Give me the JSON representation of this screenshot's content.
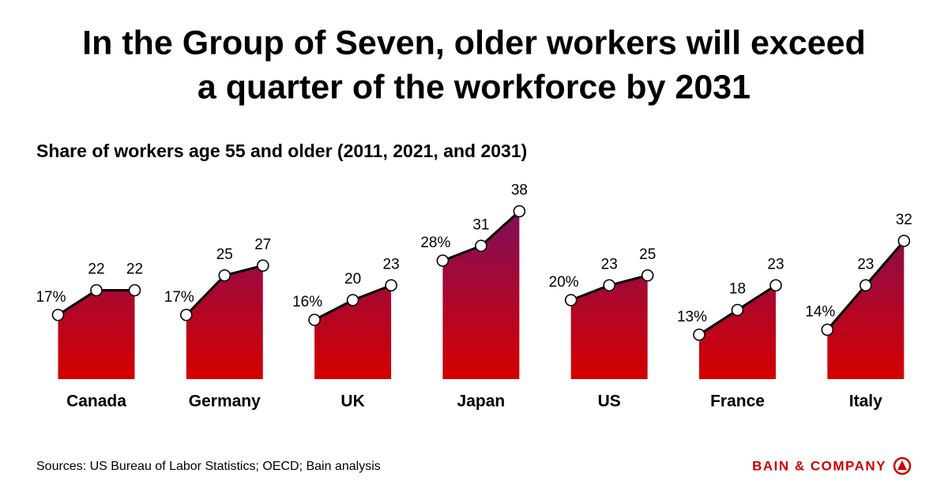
{
  "chart_data": {
    "type": "area",
    "title": [
      "In the Group of Seven, older workers will exceed",
      "a quarter of the workforce by 2031"
    ],
    "subtitle": "Share of workers age 55 and older (2011, 2021, and 2031)",
    "source": "Sources: US Bureau of Labor Statistics; OECD; Bain analysis",
    "logo": "BAIN & COMPANY",
    "ylim": [
      4,
      40
    ],
    "color_bottom": "#d40000",
    "color_top": "#7a1060",
    "series": [
      {
        "name": "Canada",
        "values": [
          17,
          22,
          22
        ],
        "value_labels": [
          "17%",
          "22",
          "22"
        ]
      },
      {
        "name": "Germany",
        "values": [
          17,
          25,
          27
        ],
        "value_labels": [
          "17%",
          "25",
          "27"
        ]
      },
      {
        "name": "UK",
        "values": [
          16,
          20,
          23
        ],
        "value_labels": [
          "16%",
          "20",
          "23"
        ]
      },
      {
        "name": "Japan",
        "values": [
          28,
          31,
          38
        ],
        "value_labels": [
          "28%",
          "31",
          "38"
        ]
      },
      {
        "name": "US",
        "values": [
          20,
          23,
          25
        ],
        "value_labels": [
          "20%",
          "23",
          "25"
        ]
      },
      {
        "name": "France",
        "values": [
          13,
          18,
          23
        ],
        "value_labels": [
          "13%",
          "18",
          "23"
        ]
      },
      {
        "name": "Italy",
        "values": [
          14,
          23,
          32
        ],
        "value_labels": [
          "14%",
          "23",
          "32"
        ]
      }
    ]
  }
}
